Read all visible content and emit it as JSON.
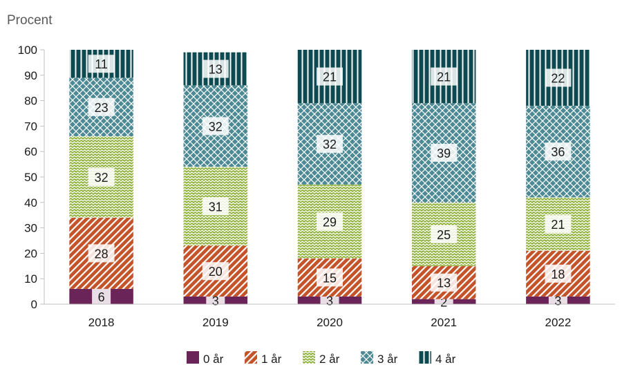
{
  "chart_data": {
    "type": "bar",
    "stacked": true,
    "ylabel": "Procent",
    "ylim": [
      0,
      100
    ],
    "yticks": [
      0,
      10,
      20,
      30,
      40,
      50,
      60,
      70,
      80,
      90,
      100
    ],
    "categories": [
      "2018",
      "2019",
      "2020",
      "2021",
      "2022"
    ],
    "series": [
      {
        "name": "0 år",
        "values": [
          6,
          3,
          3,
          2,
          3
        ],
        "color": "#6b2458",
        "pattern": "solid"
      },
      {
        "name": "1 år",
        "values": [
          28,
          20,
          15,
          13,
          18
        ],
        "color": "#c4532a",
        "pattern": "diagonal"
      },
      {
        "name": "2 år",
        "values": [
          32,
          31,
          29,
          25,
          21
        ],
        "color": "#8fb23a",
        "pattern": "zigzag"
      },
      {
        "name": "3 år",
        "values": [
          23,
          32,
          32,
          39,
          36
        ],
        "color": "#4d8a96",
        "pattern": "crosshatch"
      },
      {
        "name": "4 år",
        "values": [
          11,
          13,
          21,
          21,
          22
        ],
        "color": "#0d4b52",
        "pattern": "vertical"
      }
    ],
    "legend_position": "bottom",
    "grid": false
  }
}
